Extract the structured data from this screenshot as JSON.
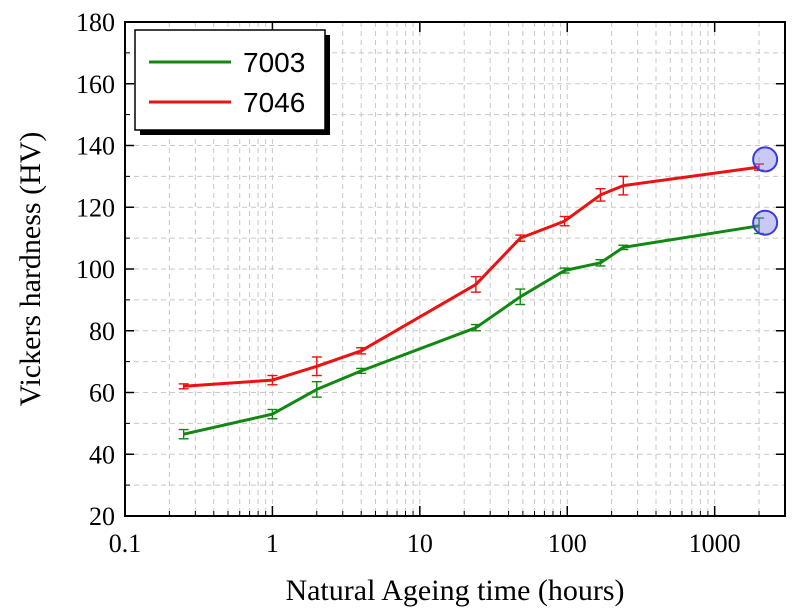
{
  "chart_data": {
    "type": "line",
    "title": "",
    "xlabel": "Natural Ageing time (hours)",
    "ylabel": "Vickers hardness (HV)",
    "xscale": "log",
    "xlim": [
      0.1,
      3000
    ],
    "ylim": [
      20,
      180
    ],
    "xticks": [
      0.1,
      1,
      10,
      100,
      1000
    ],
    "xtick_labels": [
      "0.1",
      "1",
      "10",
      "100",
      "1000"
    ],
    "yticks": [
      20,
      40,
      60,
      80,
      100,
      120,
      140,
      160,
      180
    ],
    "ytick_labels": [
      "20",
      "40",
      "60",
      "80",
      "100",
      "120",
      "140",
      "160",
      "180"
    ],
    "grid": true,
    "grid_style": "dashed",
    "legend_position": "top-left",
    "series": [
      {
        "name": "7003",
        "color": "#118811",
        "x": [
          0.25,
          1,
          2,
          4,
          24,
          48,
          96,
          168,
          240,
          2000
        ],
        "y": [
          46.5,
          53,
          61,
          67,
          81,
          91,
          99.5,
          102,
          107,
          114
        ],
        "err": [
          1.5,
          1.5,
          2.5,
          0.8,
          1.0,
          2.5,
          0.8,
          1.0,
          0.7,
          2.5
        ]
      },
      {
        "name": "7046",
        "color": "#ee1111",
        "x": [
          0.25,
          1,
          2,
          4,
          24,
          48,
          96,
          168,
          240,
          2000
        ],
        "y": [
          62,
          64,
          68.5,
          73.5,
          95,
          110,
          115.5,
          124,
          127,
          133
        ],
        "err": [
          0.8,
          1.5,
          3.0,
          1.0,
          2.5,
          1.0,
          1.5,
          2.0,
          3.0,
          1.0
        ]
      }
    ],
    "highlight_markers": [
      {
        "x": 2200,
        "y": 135.5,
        "color": "#7777ee"
      },
      {
        "x": 2200,
        "y": 115,
        "color": "#7777ee"
      }
    ]
  }
}
